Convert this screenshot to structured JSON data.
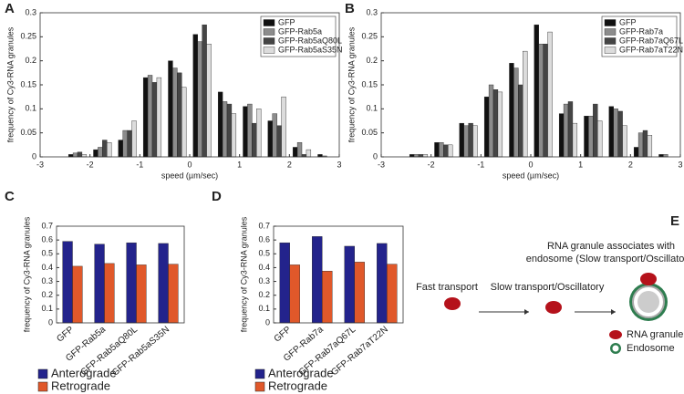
{
  "chart_data": [
    {
      "panel": "A",
      "type": "bar",
      "x": [
        -2.25,
        -1.75,
        -1.25,
        -0.75,
        -0.25,
        0.25,
        0.75,
        1.25,
        1.75,
        2.25,
        2.75
      ],
      "series": [
        {
          "name": "GFP",
          "color": "#111111",
          "values": [
            0.005,
            0.015,
            0.035,
            0.165,
            0.2,
            0.255,
            0.135,
            0.105,
            0.075,
            0.02,
            0.005
          ]
        },
        {
          "name": "GFP-Rab5a",
          "color": "#8c8c8c",
          "values": [
            0.008,
            0.02,
            0.055,
            0.17,
            0.185,
            0.24,
            0.115,
            0.11,
            0.09,
            0.03,
            0.002
          ]
        },
        {
          "name": "GFP-Rab5aQ80L",
          "color": "#454545",
          "values": [
            0.01,
            0.035,
            0.055,
            0.155,
            0.175,
            0.275,
            0.11,
            0.07,
            0.065,
            0.005,
            0
          ]
        },
        {
          "name": "GFP-Rab5aS35N",
          "color": "#dcdcdc",
          "values": [
            0.005,
            0.03,
            0.075,
            0.165,
            0.145,
            0.235,
            0.09,
            0.1,
            0.125,
            0.015,
            0
          ]
        }
      ],
      "xlim": [
        -3,
        3
      ],
      "xticks": [
        -3,
        -2,
        -1,
        0,
        1,
        2,
        3
      ],
      "ylim": [
        0,
        0.3
      ],
      "yticks": [
        0,
        0.05,
        0.1,
        0.15,
        0.2,
        0.25,
        0.3
      ],
      "xlabel": "speed (µm/sec)",
      "ylabel": "frequency of Cy3-RNA granules",
      "legend": "upper right"
    },
    {
      "panel": "B",
      "type": "bar",
      "x": [
        -2.25,
        -1.75,
        -1.25,
        -0.75,
        -0.25,
        0.25,
        0.75,
        1.25,
        1.75,
        2.25,
        2.75
      ],
      "series": [
        {
          "name": "GFP",
          "color": "#111111",
          "values": [
            0.005,
            0.03,
            0.07,
            0.125,
            0.195,
            0.275,
            0.09,
            0.085,
            0.105,
            0.02,
            0.005
          ]
        },
        {
          "name": "GFP-Rab7a",
          "color": "#8c8c8c",
          "values": [
            0.005,
            0.03,
            0.065,
            0.15,
            0.185,
            0.235,
            0.11,
            0.085,
            0.1,
            0.05,
            0.005
          ]
        },
        {
          "name": "GFP-Rab7aQ67L",
          "color": "#454545",
          "values": [
            0.005,
            0.025,
            0.07,
            0.14,
            0.15,
            0.235,
            0.115,
            0.11,
            0.095,
            0.055,
            0
          ]
        },
        {
          "name": "GFP-Rab7aT22N",
          "color": "#dcdcdc",
          "values": [
            0.005,
            0.025,
            0.065,
            0.135,
            0.22,
            0.26,
            0.07,
            0.075,
            0.065,
            0.045,
            0
          ]
        }
      ],
      "xlim": [
        -3,
        3
      ],
      "xticks": [
        -3,
        -2,
        -1,
        0,
        1,
        2,
        3
      ],
      "ylim": [
        0,
        0.3
      ],
      "yticks": [
        0,
        0.05,
        0.1,
        0.15,
        0.2,
        0.25,
        0.3
      ],
      "xlabel": "speed (µm/sec)",
      "ylabel": "frequency of Cy3-RNA granules",
      "legend": "upper right"
    },
    {
      "panel": "C",
      "type": "bar",
      "categories": [
        "GFP",
        "GFP-Rab5a",
        "GFP-Rab5aQ80L",
        "GFP-Rab5aS35N"
      ],
      "series": [
        {
          "name": "Anterograde",
          "color": "#23238c",
          "values": [
            0.59,
            0.57,
            0.58,
            0.575
          ]
        },
        {
          "name": "Retrograde",
          "color": "#e0582a",
          "values": [
            0.41,
            0.43,
            0.42,
            0.425
          ]
        }
      ],
      "ylim": [
        0,
        0.7
      ],
      "yticks": [
        0,
        0.1,
        0.2,
        0.3,
        0.4,
        0.5,
        0.6,
        0.7
      ],
      "ylabel": "frequency of Cy3-RNA granules",
      "legend": "below"
    },
    {
      "panel": "D",
      "type": "bar",
      "categories": [
        "GFP",
        "GFP-Rab7a",
        "GFP-Rab7aQ67L",
        "GFP-Rab7aT22N"
      ],
      "series": [
        {
          "name": "Anterograde",
          "color": "#23238c",
          "values": [
            0.58,
            0.625,
            0.555,
            0.575
          ]
        },
        {
          "name": "Retrograde",
          "color": "#e0582a",
          "values": [
            0.42,
            0.375,
            0.44,
            0.425
          ]
        }
      ],
      "ylim": [
        0,
        0.7
      ],
      "yticks": [
        0,
        0.1,
        0.2,
        0.3,
        0.4,
        0.5,
        0.6,
        0.7
      ],
      "ylabel": "frequency of Cy3-RNA granules",
      "legend": "below"
    }
  ],
  "diagram": {
    "panel": "E",
    "title_line1": "RNA granule associates with",
    "title_line2": "endosome (Slow transport/Oscillatory)",
    "step1": "Fast transport",
    "step2": "Slow transport/Oscillatory",
    "key_granule": "RNA granule",
    "key_endosome": "Endosome"
  }
}
